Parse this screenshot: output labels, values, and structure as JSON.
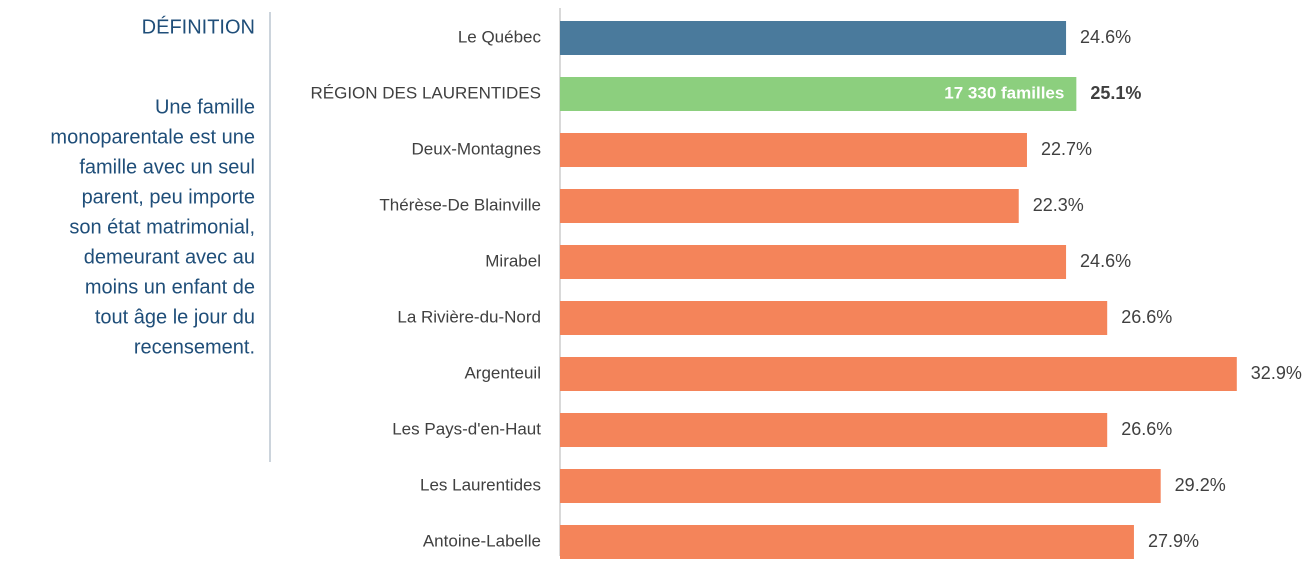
{
  "definition": {
    "title": "DÉFINITION",
    "lines": [
      "Une famille",
      "monoparentale est une",
      "famille avec un seul",
      "parent, peu importe",
      "son état matrimonial,",
      "demeurant avec au",
      "moins un enfant de",
      "tout âge le jour du",
      "recensement."
    ]
  },
  "chart_data": {
    "type": "bar",
    "orientation": "horizontal",
    "categories": [
      "Le Québec",
      "RÉGION DES LAURENTIDES",
      "Deux-Montagnes",
      "Thérèse-De Blainville",
      "Mirabel",
      "La Rivière-du-Nord",
      "Argenteuil",
      "Les Pays-d'en-Haut",
      "Les Laurentides",
      "Antoine-Labelle"
    ],
    "values": [
      24.6,
      25.1,
      22.7,
      22.3,
      24.6,
      26.6,
      32.9,
      26.6,
      29.2,
      27.9
    ],
    "value_labels": [
      "24.6%",
      "25.1%",
      "22.7%",
      "22.3%",
      "24.6%",
      "26.6%",
      "32.9%",
      "26.6%",
      "29.2%",
      "27.9%"
    ],
    "colors": [
      "#4a7a9c",
      "#8ccf7e",
      "#f4845a",
      "#f4845a",
      "#f4845a",
      "#f4845a",
      "#f4845a",
      "#f4845a",
      "#f4845a",
      "#f4845a"
    ],
    "annotation": "17 330 familles",
    "xlim": [
      0,
      35
    ]
  }
}
